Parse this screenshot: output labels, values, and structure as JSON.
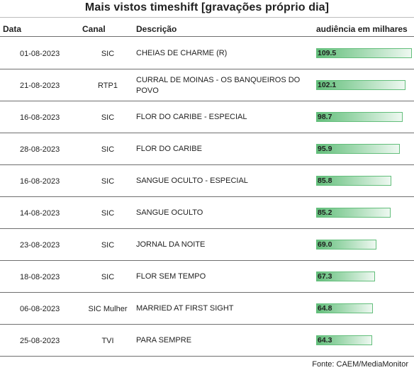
{
  "title": "Mais vistos timeshift [gravações próprio dia]",
  "headers": {
    "date": "Data",
    "channel": "Canal",
    "description": "Descrição",
    "audience": "audiência em milhares"
  },
  "rows": [
    {
      "date": "01-08-2023",
      "channel": "SIC",
      "description": "CHEIAS DE CHARME (R)",
      "audience": "109.5",
      "value": 109.5
    },
    {
      "date": "21-08-2023",
      "channel": "RTP1",
      "description": "CURRAL DE MOINAS - OS BANQUEIROS DO POVO",
      "audience": "102.1",
      "value": 102.1
    },
    {
      "date": "16-08-2023",
      "channel": "SIC",
      "description": "FLOR DO CARIBE - ESPECIAL",
      "audience": "98.7",
      "value": 98.7
    },
    {
      "date": "28-08-2023",
      "channel": "SIC",
      "description": "FLOR DO CARIBE",
      "audience": "95.9",
      "value": 95.9
    },
    {
      "date": "16-08-2023",
      "channel": "SIC",
      "description": "SANGUE OCULTO - ESPECIAL",
      "audience": "85.8",
      "value": 85.8
    },
    {
      "date": "14-08-2023",
      "channel": "SIC",
      "description": "SANGUE OCULTO",
      "audience": "85.2",
      "value": 85.2
    },
    {
      "date": "23-08-2023",
      "channel": "SIC",
      "description": "JORNAL DA NOITE",
      "audience": "69.0",
      "value": 69.0
    },
    {
      "date": "18-08-2023",
      "channel": "SIC",
      "description": "FLOR SEM TEMPO",
      "audience": "67.3",
      "value": 67.3
    },
    {
      "date": "06-08-2023",
      "channel": "SIC Mulher",
      "description": "MARRIED AT FIRST SIGHT",
      "audience": "64.8",
      "value": 64.8
    },
    {
      "date": "25-08-2023",
      "channel": "TVI",
      "description": "PARA SEMPRE",
      "audience": "64.3",
      "value": 64.3
    }
  ],
  "source": "Fonte: CAEM/MediaMonitor",
  "colors": {
    "bar": "#63be7b"
  }
}
